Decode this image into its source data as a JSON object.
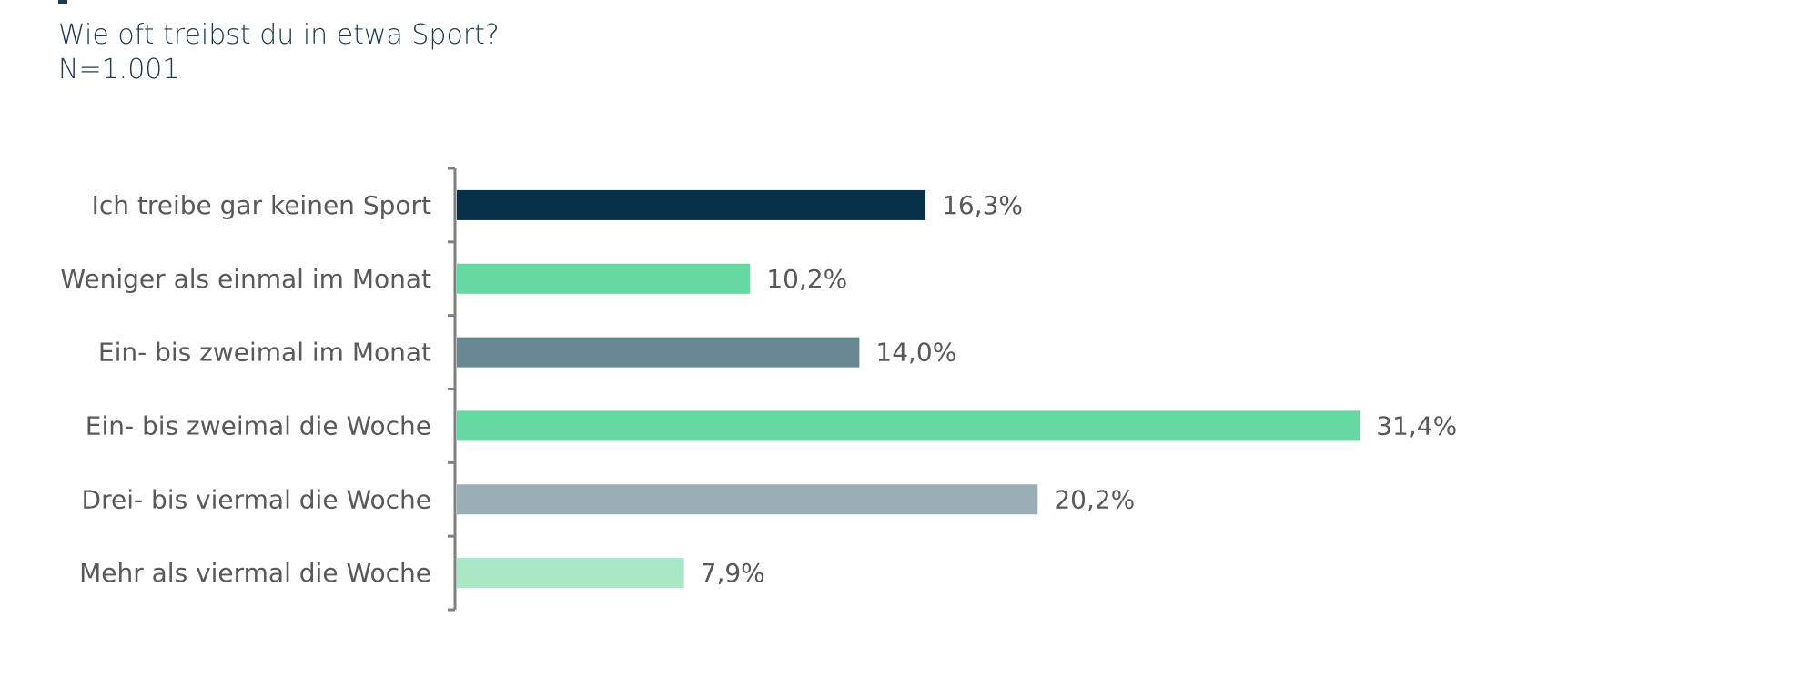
{
  "header": {
    "question": "Wie oft treibst du in etwa Sport?",
    "sample": "N=1.001"
  },
  "chart_data": {
    "type": "bar",
    "orientation": "horizontal",
    "categories": [
      "Ich treibe gar keinen Sport",
      "Weniger als einmal im Monat",
      "Ein- bis zweimal im Monat",
      "Ein- bis zweimal die Woche",
      "Drei- bis viermal die Woche",
      "Mehr als viermal die Woche"
    ],
    "values": [
      16.3,
      10.2,
      14.0,
      31.4,
      20.2,
      7.9
    ],
    "value_labels": [
      "16,3%",
      "10,2%",
      "14,0%",
      "31,4%",
      "20,2%",
      "7,9%"
    ],
    "unit": "%",
    "colors": [
      "#083049",
      "#66d9a2",
      "#688992",
      "#66d9a2",
      "#9aaeb6",
      "#a8e8c6"
    ],
    "xlim": [
      0,
      35
    ],
    "grid": false,
    "legend": "none"
  }
}
